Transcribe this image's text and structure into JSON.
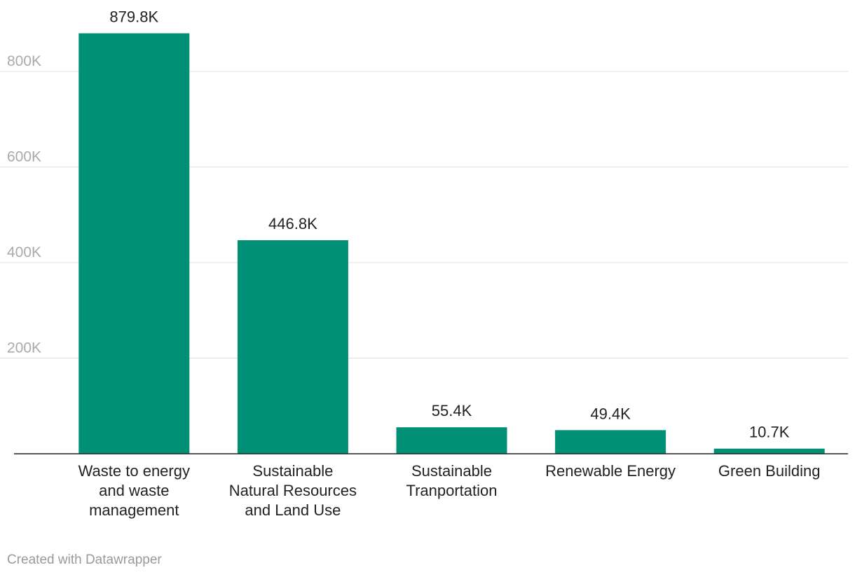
{
  "chart_data": {
    "type": "bar",
    "categories": [
      [
        "Waste to energy",
        "and waste",
        "management"
      ],
      [
        "Sustainable",
        "Natural Resources",
        "and Land Use"
      ],
      [
        "Sustainable",
        "Tranportation"
      ],
      [
        "Renewable Energy"
      ],
      [
        "Green Building"
      ]
    ],
    "values": [
      879800,
      446800,
      55400,
      49400,
      10700
    ],
    "value_labels": [
      "879.8K",
      "446.8K",
      "55.4K",
      "49.4K",
      "10.7K"
    ],
    "ylim": [
      0,
      880000
    ],
    "yticks": [
      200000,
      400000,
      600000,
      800000
    ],
    "ytick_labels": [
      "200K",
      "400K",
      "600K",
      "800K"
    ],
    "grid": true,
    "title": "",
    "xlabel": "",
    "ylabel": ""
  },
  "colors": {
    "bar": "#009075"
  },
  "footer": {
    "credit": "Created with Datawrapper"
  }
}
